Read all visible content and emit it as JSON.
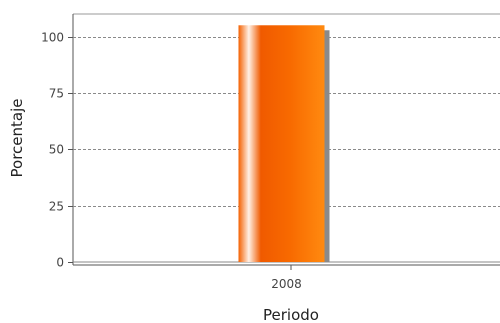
{
  "chart_data": {
    "type": "bar",
    "categories": [
      "2008"
    ],
    "values": [
      105
    ],
    "xlabel": "Periodo",
    "ylabel": "Porcentaje",
    "ylim": [
      0,
      110
    ],
    "yticks": [
      0,
      25,
      50,
      75,
      100
    ],
    "grid": true,
    "legend": "none"
  },
  "colors": {
    "bar_dark": "#f05a00",
    "bar_light": "#ff8a10",
    "bar_highlight": "#fff1e6",
    "bar_shadow": "#8a8a8a",
    "grid": "#8a8a8a",
    "axis": "#555555"
  }
}
